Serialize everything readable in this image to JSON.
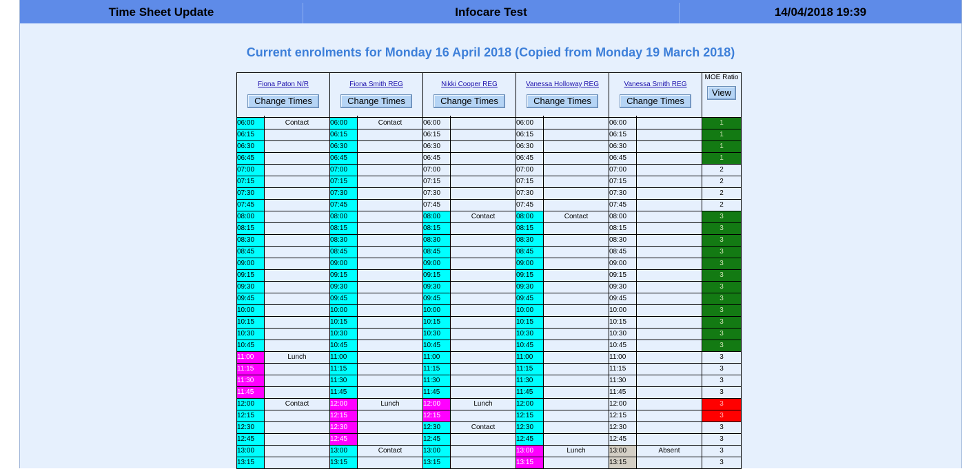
{
  "header": {
    "left": "Time Sheet Update",
    "center": "Infocare Test",
    "right": "14/04/2018 19:39"
  },
  "subtitle": "Current enrolments for Monday 16 April 2018 (Copied from Monday 19 March 2018)",
  "change_times_label": "Change Times",
  "moe": {
    "label": "MOE Ratio",
    "view_label": "View"
  },
  "colors": {
    "cyan": "#00ffff",
    "magenta": "#ff00ff",
    "gray": "#d4cfc5",
    "green": "#137a13",
    "red": "#ff0000"
  },
  "staff": [
    {
      "name": "Fiona Paton N/R",
      "slots": [
        {
          "time": "06:00",
          "color": "cyan",
          "activity": "Contact"
        },
        {
          "time": "06:15",
          "color": "cyan",
          "activity": ""
        },
        {
          "time": "06:30",
          "color": "cyan",
          "activity": ""
        },
        {
          "time": "06:45",
          "color": "cyan",
          "activity": ""
        },
        {
          "time": "07:00",
          "color": "cyan",
          "activity": ""
        },
        {
          "time": "07:15",
          "color": "cyan",
          "activity": ""
        },
        {
          "time": "07:30",
          "color": "cyan",
          "activity": ""
        },
        {
          "time": "07:45",
          "color": "cyan",
          "activity": ""
        },
        {
          "time": "08:00",
          "color": "cyan",
          "activity": ""
        },
        {
          "time": "08:15",
          "color": "cyan",
          "activity": ""
        },
        {
          "time": "08:30",
          "color": "cyan",
          "activity": ""
        },
        {
          "time": "08:45",
          "color": "cyan",
          "activity": ""
        },
        {
          "time": "09:00",
          "color": "cyan",
          "activity": ""
        },
        {
          "time": "09:15",
          "color": "cyan",
          "activity": ""
        },
        {
          "time": "09:30",
          "color": "cyan",
          "activity": ""
        },
        {
          "time": "09:45",
          "color": "cyan",
          "activity": ""
        },
        {
          "time": "10:00",
          "color": "cyan",
          "activity": ""
        },
        {
          "time": "10:15",
          "color": "cyan",
          "activity": ""
        },
        {
          "time": "10:30",
          "color": "cyan",
          "activity": ""
        },
        {
          "time": "10:45",
          "color": "cyan",
          "activity": ""
        },
        {
          "time": "11:00",
          "color": "magenta",
          "activity": "Lunch"
        },
        {
          "time": "11:15",
          "color": "magenta",
          "activity": ""
        },
        {
          "time": "11:30",
          "color": "magenta",
          "activity": ""
        },
        {
          "time": "11:45",
          "color": "magenta",
          "activity": ""
        },
        {
          "time": "12:00",
          "color": "cyan",
          "activity": "Contact"
        },
        {
          "time": "12:15",
          "color": "cyan",
          "activity": ""
        },
        {
          "time": "12:30",
          "color": "cyan",
          "activity": ""
        },
        {
          "time": "12:45",
          "color": "cyan",
          "activity": ""
        },
        {
          "time": "13:00",
          "color": "cyan",
          "activity": ""
        },
        {
          "time": "13:15",
          "color": "cyan",
          "activity": ""
        }
      ]
    },
    {
      "name": "Fiona Smith REG",
      "slots": [
        {
          "time": "06:00",
          "color": "cyan",
          "activity": "Contact"
        },
        {
          "time": "06:15",
          "color": "cyan",
          "activity": ""
        },
        {
          "time": "06:30",
          "color": "cyan",
          "activity": ""
        },
        {
          "time": "06:45",
          "color": "cyan",
          "activity": ""
        },
        {
          "time": "07:00",
          "color": "cyan",
          "activity": ""
        },
        {
          "time": "07:15",
          "color": "cyan",
          "activity": ""
        },
        {
          "time": "07:30",
          "color": "cyan",
          "activity": ""
        },
        {
          "time": "07:45",
          "color": "cyan",
          "activity": ""
        },
        {
          "time": "08:00",
          "color": "cyan",
          "activity": ""
        },
        {
          "time": "08:15",
          "color": "cyan",
          "activity": ""
        },
        {
          "time": "08:30",
          "color": "cyan",
          "activity": ""
        },
        {
          "time": "08:45",
          "color": "cyan",
          "activity": ""
        },
        {
          "time": "09:00",
          "color": "cyan",
          "activity": ""
        },
        {
          "time": "09:15",
          "color": "cyan",
          "activity": ""
        },
        {
          "time": "09:30",
          "color": "cyan",
          "activity": ""
        },
        {
          "time": "09:45",
          "color": "cyan",
          "activity": ""
        },
        {
          "time": "10:00",
          "color": "cyan",
          "activity": ""
        },
        {
          "time": "10:15",
          "color": "cyan",
          "activity": ""
        },
        {
          "time": "10:30",
          "color": "cyan",
          "activity": ""
        },
        {
          "time": "10:45",
          "color": "cyan",
          "activity": ""
        },
        {
          "time": "11:00",
          "color": "cyan",
          "activity": ""
        },
        {
          "time": "11:15",
          "color": "cyan",
          "activity": ""
        },
        {
          "time": "11:30",
          "color": "cyan",
          "activity": ""
        },
        {
          "time": "11:45",
          "color": "cyan",
          "activity": ""
        },
        {
          "time": "12:00",
          "color": "magenta",
          "activity": "Lunch"
        },
        {
          "time": "12:15",
          "color": "magenta",
          "activity": ""
        },
        {
          "time": "12:30",
          "color": "magenta",
          "activity": ""
        },
        {
          "time": "12:45",
          "color": "magenta",
          "activity": ""
        },
        {
          "time": "13:00",
          "color": "cyan",
          "activity": "Contact"
        },
        {
          "time": "13:15",
          "color": "cyan",
          "activity": ""
        }
      ]
    },
    {
      "name": "Nikki Cooper REG",
      "slots": [
        {
          "time": "06:00",
          "color": "none",
          "activity": ""
        },
        {
          "time": "06:15",
          "color": "none",
          "activity": ""
        },
        {
          "time": "06:30",
          "color": "none",
          "activity": ""
        },
        {
          "time": "06:45",
          "color": "none",
          "activity": ""
        },
        {
          "time": "07:00",
          "color": "none",
          "activity": ""
        },
        {
          "time": "07:15",
          "color": "none",
          "activity": ""
        },
        {
          "time": "07:30",
          "color": "none",
          "activity": ""
        },
        {
          "time": "07:45",
          "color": "none",
          "activity": ""
        },
        {
          "time": "08:00",
          "color": "cyan",
          "activity": "Contact"
        },
        {
          "time": "08:15",
          "color": "cyan",
          "activity": ""
        },
        {
          "time": "08:30",
          "color": "cyan",
          "activity": ""
        },
        {
          "time": "08:45",
          "color": "cyan",
          "activity": ""
        },
        {
          "time": "09:00",
          "color": "cyan",
          "activity": ""
        },
        {
          "time": "09:15",
          "color": "cyan",
          "activity": ""
        },
        {
          "time": "09:30",
          "color": "cyan",
          "activity": ""
        },
        {
          "time": "09:45",
          "color": "cyan",
          "activity": ""
        },
        {
          "time": "10:00",
          "color": "cyan",
          "activity": ""
        },
        {
          "time": "10:15",
          "color": "cyan",
          "activity": ""
        },
        {
          "time": "10:30",
          "color": "cyan",
          "activity": ""
        },
        {
          "time": "10:45",
          "color": "cyan",
          "activity": ""
        },
        {
          "time": "11:00",
          "color": "cyan",
          "activity": ""
        },
        {
          "time": "11:15",
          "color": "cyan",
          "activity": ""
        },
        {
          "time": "11:30",
          "color": "cyan",
          "activity": ""
        },
        {
          "time": "11:45",
          "color": "cyan",
          "activity": ""
        },
        {
          "time": "12:00",
          "color": "magenta",
          "activity": "Lunch"
        },
        {
          "time": "12:15",
          "color": "magenta",
          "activity": ""
        },
        {
          "time": "12:30",
          "color": "cyan",
          "activity": "Contact"
        },
        {
          "time": "12:45",
          "color": "cyan",
          "activity": ""
        },
        {
          "time": "13:00",
          "color": "cyan",
          "activity": ""
        },
        {
          "time": "13:15",
          "color": "cyan",
          "activity": ""
        }
      ]
    },
    {
      "name": "Vanessa Holloway REG",
      "slots": [
        {
          "time": "06:00",
          "color": "none",
          "activity": ""
        },
        {
          "time": "06:15",
          "color": "none",
          "activity": ""
        },
        {
          "time": "06:30",
          "color": "none",
          "activity": ""
        },
        {
          "time": "06:45",
          "color": "none",
          "activity": ""
        },
        {
          "time": "07:00",
          "color": "none",
          "activity": ""
        },
        {
          "time": "07:15",
          "color": "none",
          "activity": ""
        },
        {
          "time": "07:30",
          "color": "none",
          "activity": ""
        },
        {
          "time": "07:45",
          "color": "none",
          "activity": ""
        },
        {
          "time": "08:00",
          "color": "cyan",
          "activity": "Contact"
        },
        {
          "time": "08:15",
          "color": "cyan",
          "activity": ""
        },
        {
          "time": "08:30",
          "color": "cyan",
          "activity": ""
        },
        {
          "time": "08:45",
          "color": "cyan",
          "activity": ""
        },
        {
          "time": "09:00",
          "color": "cyan",
          "activity": ""
        },
        {
          "time": "09:15",
          "color": "cyan",
          "activity": ""
        },
        {
          "time": "09:30",
          "color": "cyan",
          "activity": ""
        },
        {
          "time": "09:45",
          "color": "cyan",
          "activity": ""
        },
        {
          "time": "10:00",
          "color": "cyan",
          "activity": ""
        },
        {
          "time": "10:15",
          "color": "cyan",
          "activity": ""
        },
        {
          "time": "10:30",
          "color": "cyan",
          "activity": ""
        },
        {
          "time": "10:45",
          "color": "cyan",
          "activity": ""
        },
        {
          "time": "11:00",
          "color": "cyan",
          "activity": ""
        },
        {
          "time": "11:15",
          "color": "cyan",
          "activity": ""
        },
        {
          "time": "11:30",
          "color": "cyan",
          "activity": ""
        },
        {
          "time": "11:45",
          "color": "cyan",
          "activity": ""
        },
        {
          "time": "12:00",
          "color": "cyan",
          "activity": ""
        },
        {
          "time": "12:15",
          "color": "cyan",
          "activity": ""
        },
        {
          "time": "12:30",
          "color": "cyan",
          "activity": ""
        },
        {
          "time": "12:45",
          "color": "cyan",
          "activity": ""
        },
        {
          "time": "13:00",
          "color": "magenta",
          "activity": "Lunch"
        },
        {
          "time": "13:15",
          "color": "magenta",
          "activity": ""
        }
      ]
    },
    {
      "name": "Vanessa Smith REG",
      "slots": [
        {
          "time": "06:00",
          "color": "none",
          "activity": ""
        },
        {
          "time": "06:15",
          "color": "none",
          "activity": ""
        },
        {
          "time": "06:30",
          "color": "none",
          "activity": ""
        },
        {
          "time": "06:45",
          "color": "none",
          "activity": ""
        },
        {
          "time": "07:00",
          "color": "none",
          "activity": ""
        },
        {
          "time": "07:15",
          "color": "none",
          "activity": ""
        },
        {
          "time": "07:30",
          "color": "none",
          "activity": ""
        },
        {
          "time": "07:45",
          "color": "none",
          "activity": ""
        },
        {
          "time": "08:00",
          "color": "none",
          "activity": ""
        },
        {
          "time": "08:15",
          "color": "none",
          "activity": ""
        },
        {
          "time": "08:30",
          "color": "none",
          "activity": ""
        },
        {
          "time": "08:45",
          "color": "none",
          "activity": ""
        },
        {
          "time": "09:00",
          "color": "none",
          "activity": ""
        },
        {
          "time": "09:15",
          "color": "none",
          "activity": ""
        },
        {
          "time": "09:30",
          "color": "none",
          "activity": ""
        },
        {
          "time": "09:45",
          "color": "none",
          "activity": ""
        },
        {
          "time": "10:00",
          "color": "none",
          "activity": ""
        },
        {
          "time": "10:15",
          "color": "none",
          "activity": ""
        },
        {
          "time": "10:30",
          "color": "none",
          "activity": ""
        },
        {
          "time": "10:45",
          "color": "none",
          "activity": ""
        },
        {
          "time": "11:00",
          "color": "none",
          "activity": ""
        },
        {
          "time": "11:15",
          "color": "none",
          "activity": ""
        },
        {
          "time": "11:30",
          "color": "none",
          "activity": ""
        },
        {
          "time": "11:45",
          "color": "none",
          "activity": ""
        },
        {
          "time": "12:00",
          "color": "none",
          "activity": ""
        },
        {
          "time": "12:15",
          "color": "none",
          "activity": ""
        },
        {
          "time": "12:30",
          "color": "none",
          "activity": ""
        },
        {
          "time": "12:45",
          "color": "none",
          "activity": ""
        },
        {
          "time": "13:00",
          "color": "gray",
          "activity": "Absent"
        },
        {
          "time": "13:15",
          "color": "gray",
          "activity": ""
        }
      ]
    }
  ],
  "ratios": [
    {
      "value": "1",
      "color": "green"
    },
    {
      "value": "1",
      "color": "green"
    },
    {
      "value": "1",
      "color": "green"
    },
    {
      "value": "1",
      "color": "green"
    },
    {
      "value": "2",
      "color": "none"
    },
    {
      "value": "2",
      "color": "none"
    },
    {
      "value": "2",
      "color": "none"
    },
    {
      "value": "2",
      "color": "none"
    },
    {
      "value": "3",
      "color": "green"
    },
    {
      "value": "3",
      "color": "green"
    },
    {
      "value": "3",
      "color": "green"
    },
    {
      "value": "3",
      "color": "green"
    },
    {
      "value": "3",
      "color": "green"
    },
    {
      "value": "3",
      "color": "green"
    },
    {
      "value": "3",
      "color": "green"
    },
    {
      "value": "3",
      "color": "green"
    },
    {
      "value": "3",
      "color": "green"
    },
    {
      "value": "3",
      "color": "green"
    },
    {
      "value": "3",
      "color": "green"
    },
    {
      "value": "3",
      "color": "green"
    },
    {
      "value": "3",
      "color": "none"
    },
    {
      "value": "3",
      "color": "none"
    },
    {
      "value": "3",
      "color": "none"
    },
    {
      "value": "3",
      "color": "none"
    },
    {
      "value": "3",
      "color": "red"
    },
    {
      "value": "3",
      "color": "red"
    },
    {
      "value": "3",
      "color": "none"
    },
    {
      "value": "3",
      "color": "none"
    },
    {
      "value": "3",
      "color": "none"
    },
    {
      "value": "3",
      "color": "none"
    }
  ]
}
